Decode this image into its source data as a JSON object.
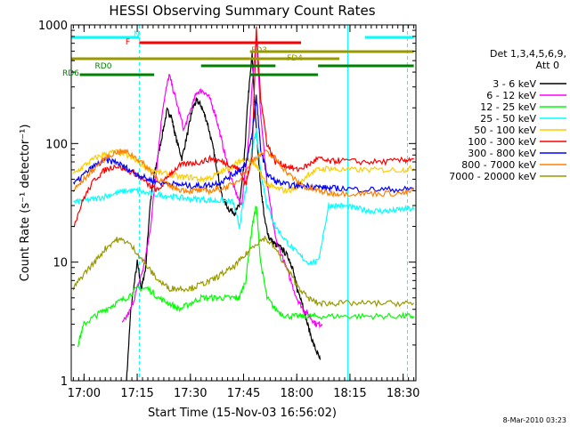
{
  "chart_data": {
    "type": "line",
    "title": "HESSI Observing Summary Count Rates",
    "xlabel": "Start Time (15-Nov-03 16:56:02)",
    "ylabel": "Count Rate (s⁻¹ detector⁻¹)",
    "y_scale": "log",
    "ylim": [
      1,
      1000
    ],
    "xlim_minutes": [
      16.94,
      18.56
    ],
    "x_ticks": [
      "17:00",
      "17:15",
      "17:30",
      "17:45",
      "18:00",
      "18:15",
      "18:30"
    ],
    "x_tick_minutes": [
      17.0,
      17.25,
      17.5,
      17.75,
      18.0,
      18.25,
      18.5
    ],
    "y_tick_labels": [
      "1",
      "10",
      "100",
      "1000"
    ],
    "y_ticks": [
      1,
      10,
      100,
      1000
    ],
    "legend_header": [
      "Det 1,3,4,5,6,9,",
      "Att 0"
    ],
    "legend_position": "right",
    "timestamp": "8-Mar-2010 03:23",
    "series": [
      {
        "name": "3 - 6 keV",
        "color": "#000000",
        "x": [
          17.2,
          17.22,
          17.25,
          17.27,
          17.29,
          17.31,
          17.33,
          17.36,
          17.39,
          17.41,
          17.43,
          17.46,
          17.49,
          17.51,
          17.53,
          17.55,
          17.58,
          17.61,
          17.63,
          17.65,
          17.68,
          17.71,
          17.73,
          17.75,
          17.77,
          17.79,
          17.81,
          17.83,
          17.85,
          17.87,
          17.9,
          17.93,
          17.96,
          17.98,
          18.0,
          18.02,
          18.05,
          18.08,
          18.11
        ],
        "values": [
          1,
          4,
          10,
          6,
          9,
          30,
          55,
          100,
          190,
          170,
          115,
          75,
          130,
          200,
          230,
          210,
          150,
          85,
          55,
          35,
          28,
          26,
          30,
          60,
          230,
          560,
          130,
          45,
          22,
          16,
          14,
          13,
          11,
          9,
          6,
          5,
          3,
          2,
          1.5
        ]
      },
      {
        "name": "6 - 12 keV",
        "color": "#ff00ff",
        "x": [
          17.18,
          17.22,
          17.25,
          17.28,
          17.31,
          17.34,
          17.37,
          17.4,
          17.43,
          17.47,
          17.5,
          17.53,
          17.56,
          17.59,
          17.62,
          17.65,
          17.68,
          17.71,
          17.74,
          17.77,
          17.79,
          17.81,
          17.83,
          17.86,
          17.9,
          17.95,
          18.0,
          18.03,
          18.06,
          18.09,
          18.12
        ],
        "values": [
          3,
          4,
          6,
          9,
          18,
          60,
          200,
          380,
          240,
          130,
          190,
          270,
          280,
          240,
          170,
          100,
          60,
          40,
          30,
          90,
          300,
          820,
          180,
          45,
          16,
          9,
          5,
          4,
          3.5,
          3,
          3
        ]
      },
      {
        "name": "12 - 25 keV",
        "color": "#00ff00",
        "x": [
          16.97,
          17.0,
          17.05,
          17.1,
          17.15,
          17.2,
          17.25,
          17.3,
          17.35,
          17.4,
          17.45,
          17.5,
          17.55,
          17.6,
          17.65,
          17.7,
          17.73,
          17.76,
          17.79,
          17.81,
          17.83,
          17.86,
          17.9,
          17.95,
          18.0,
          18.05,
          18.1,
          18.2,
          18.3,
          18.4,
          18.5,
          18.55
        ],
        "values": [
          2,
          3,
          3.5,
          4,
          4.5,
          5,
          6,
          6,
          5,
          4.5,
          4,
          4.5,
          5,
          5,
          5,
          5,
          5,
          7,
          20,
          30,
          10,
          5,
          4,
          3.5,
          3.5,
          3.5,
          3.5,
          3.5,
          3.5,
          3.5,
          3.5,
          3.5
        ]
      },
      {
        "name": "25 - 50 keV",
        "color": "#00ffff",
        "x": [
          16.95,
          17.0,
          17.05,
          17.1,
          17.15,
          17.2,
          17.25,
          17.3,
          17.35,
          17.4,
          17.45,
          17.5,
          17.55,
          17.6,
          17.65,
          17.7,
          17.73,
          17.76,
          17.79,
          17.81,
          17.83,
          17.86,
          17.9,
          17.95,
          18.0,
          18.05,
          18.1,
          18.15,
          18.2,
          18.25,
          18.3,
          18.35,
          18.4,
          18.45,
          18.5,
          18.55
        ],
        "values": [
          32,
          33,
          34,
          36,
          38,
          40,
          40,
          38,
          37,
          36,
          35,
          34,
          34,
          33,
          33,
          32,
          20,
          40,
          90,
          130,
          60,
          30,
          20,
          15,
          12,
          10,
          10,
          30,
          30,
          29,
          28,
          27,
          27,
          27,
          28,
          28
        ]
      },
      {
        "name": "50 - 100 keV",
        "color": "#ffcc00",
        "x": [
          16.95,
          17.0,
          17.05,
          17.1,
          17.15,
          17.2,
          17.25,
          17.3,
          17.35,
          17.4,
          17.45,
          17.5,
          17.55,
          17.6,
          17.65,
          17.7,
          17.73,
          17.76,
          17.79,
          17.81,
          17.83,
          17.86,
          17.9,
          17.95,
          18.0,
          18.05,
          18.1,
          18.15,
          18.2,
          18.3,
          18.4,
          18.5,
          18.55
        ],
        "values": [
          55,
          65,
          75,
          82,
          85,
          80,
          70,
          62,
          57,
          55,
          52,
          52,
          50,
          52,
          58,
          65,
          70,
          75,
          70,
          65,
          55,
          45,
          42,
          40,
          42,
          55,
          60,
          62,
          60,
          60,
          60,
          60,
          62
        ]
      },
      {
        "name": "100 - 300 keV",
        "color": "#ff0000",
        "x": [
          16.95,
          17.0,
          17.05,
          17.1,
          17.15,
          17.2,
          17.25,
          17.3,
          17.35,
          17.4,
          17.45,
          17.5,
          17.55,
          17.6,
          17.65,
          17.7,
          17.73,
          17.76,
          17.79,
          17.81,
          17.83,
          17.86,
          17.9,
          17.95,
          18.0,
          18.05,
          18.1,
          18.15,
          18.2,
          18.3,
          18.4,
          18.5,
          18.55
        ],
        "values": [
          20,
          35,
          50,
          60,
          65,
          60,
          55,
          45,
          40,
          55,
          65,
          68,
          70,
          75,
          70,
          65,
          60,
          45,
          80,
          920,
          250,
          100,
          70,
          65,
          60,
          65,
          75,
          70,
          72,
          70,
          70,
          72,
          75
        ]
      },
      {
        "name": "300 - 800 keV",
        "color": "#0000ff",
        "x": [
          16.95,
          17.0,
          17.05,
          17.1,
          17.15,
          17.2,
          17.25,
          17.3,
          17.35,
          17.4,
          17.45,
          17.5,
          17.55,
          17.6,
          17.65,
          17.7,
          17.73,
          17.76,
          17.79,
          17.81,
          17.83,
          17.86,
          17.9,
          17.95,
          18.0,
          18.05,
          18.1,
          18.15,
          18.2,
          18.3,
          18.4,
          18.5,
          18.55
        ],
        "values": [
          45,
          55,
          65,
          72,
          70,
          62,
          55,
          50,
          47,
          46,
          45,
          44,
          44,
          45,
          48,
          55,
          60,
          65,
          120,
          250,
          90,
          55,
          48,
          45,
          44,
          44,
          43,
          42,
          42,
          41,
          41,
          41,
          42
        ]
      },
      {
        "name": "800 - 7000 keV",
        "color": "#ff8000",
        "x": [
          16.95,
          17.0,
          17.05,
          17.1,
          17.15,
          17.2,
          17.25,
          17.3,
          17.35,
          17.4,
          17.45,
          17.5,
          17.55,
          17.6,
          17.65,
          17.7,
          17.75,
          17.8,
          17.85,
          17.9,
          17.95,
          18.0,
          18.05,
          18.1,
          18.15,
          18.2,
          18.3,
          18.4,
          18.5,
          18.55
        ],
        "values": [
          40,
          50,
          62,
          75,
          85,
          85,
          75,
          62,
          50,
          44,
          41,
          40,
          40,
          40,
          42,
          45,
          55,
          75,
          85,
          75,
          58,
          48,
          42,
          40,
          38,
          38,
          38,
          38,
          38,
          40
        ]
      },
      {
        "name": "7000 - 20000 keV",
        "color": "#999900",
        "x": [
          16.95,
          17.0,
          17.05,
          17.1,
          17.15,
          17.2,
          17.25,
          17.3,
          17.35,
          17.4,
          17.45,
          17.5,
          17.55,
          17.6,
          17.65,
          17.7,
          17.75,
          17.8,
          17.85,
          17.9,
          17.95,
          18.0,
          18.05,
          18.1,
          18.15,
          18.2,
          18.3,
          18.4,
          18.5,
          18.55
        ],
        "values": [
          6,
          8,
          10,
          13,
          15.5,
          15,
          12,
          9,
          7,
          6,
          6,
          6,
          6.5,
          7,
          8,
          9,
          11,
          14,
          16,
          13,
          9,
          6.5,
          5,
          4.5,
          4.5,
          4.5,
          4.5,
          4.5,
          4.5,
          4.5
        ]
      }
    ],
    "flag_bars": [
      {
        "label": "N",
        "color": "#00ffff",
        "segments": [
          [
            16.94,
            17.26
          ],
          [
            18.32,
            18.55
          ]
        ]
      },
      {
        "label": "F",
        "color": "#ff0000",
        "segments": [
          [
            17.26,
            18.02
          ]
        ]
      },
      {
        "label": "FD3",
        "color": "#999900",
        "segments": [
          [
            17.78,
            18.55
          ]
        ]
      },
      {
        "label": "",
        "color": "#999900",
        "segments": [
          [
            16.94,
            17.78
          ]
        ]
      },
      {
        "label": "FD4",
        "color": "#999900",
        "segments": [
          [
            17.78,
            18.2
          ]
        ]
      },
      {
        "label": "RD0",
        "color": "#008000",
        "segments": [
          [
            17.55,
            17.9
          ],
          [
            18.1,
            18.55
          ]
        ]
      },
      {
        "label": "RD6",
        "color": "#008000",
        "segments": [
          [
            16.98,
            17.33
          ],
          [
            17.78,
            18.1
          ]
        ]
      }
    ],
    "vertical_markers": [
      {
        "x": 16.94,
        "color": "#00ffff",
        "style": "solid"
      },
      {
        "x": 17.26,
        "color": "#00ffff",
        "style": "dashed"
      },
      {
        "x": 18.24,
        "color": "#00ffff",
        "style": "solid"
      },
      {
        "x": 18.52,
        "color": "#00ffff",
        "style": "dashed"
      }
    ]
  }
}
